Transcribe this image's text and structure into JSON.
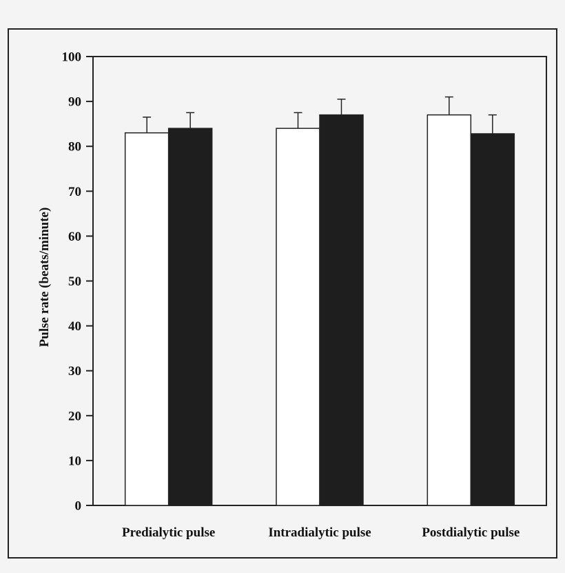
{
  "chart_data": {
    "type": "bar",
    "categories": [
      "Predialytic pulse",
      "Intradialytic pulse",
      "Postdialytic pulse"
    ],
    "series": [
      {
        "values": [
          83,
          84,
          87
        ],
        "errors": [
          3.5,
          3.5,
          4
        ],
        "color": "#ffffff"
      },
      {
        "values": [
          84,
          87,
          82.8
        ],
        "errors": [
          3.5,
          3.5,
          4.2
        ],
        "color": "#1e1e1e"
      }
    ],
    "title": "",
    "xlabel": "",
    "ylabel": "Pulse rate (beats/minute)",
    "ylim": [
      0,
      100
    ],
    "yticks": [
      0,
      10,
      20,
      30,
      40,
      50,
      60,
      70,
      80,
      90,
      100
    ],
    "grid": false,
    "legend": "none"
  }
}
